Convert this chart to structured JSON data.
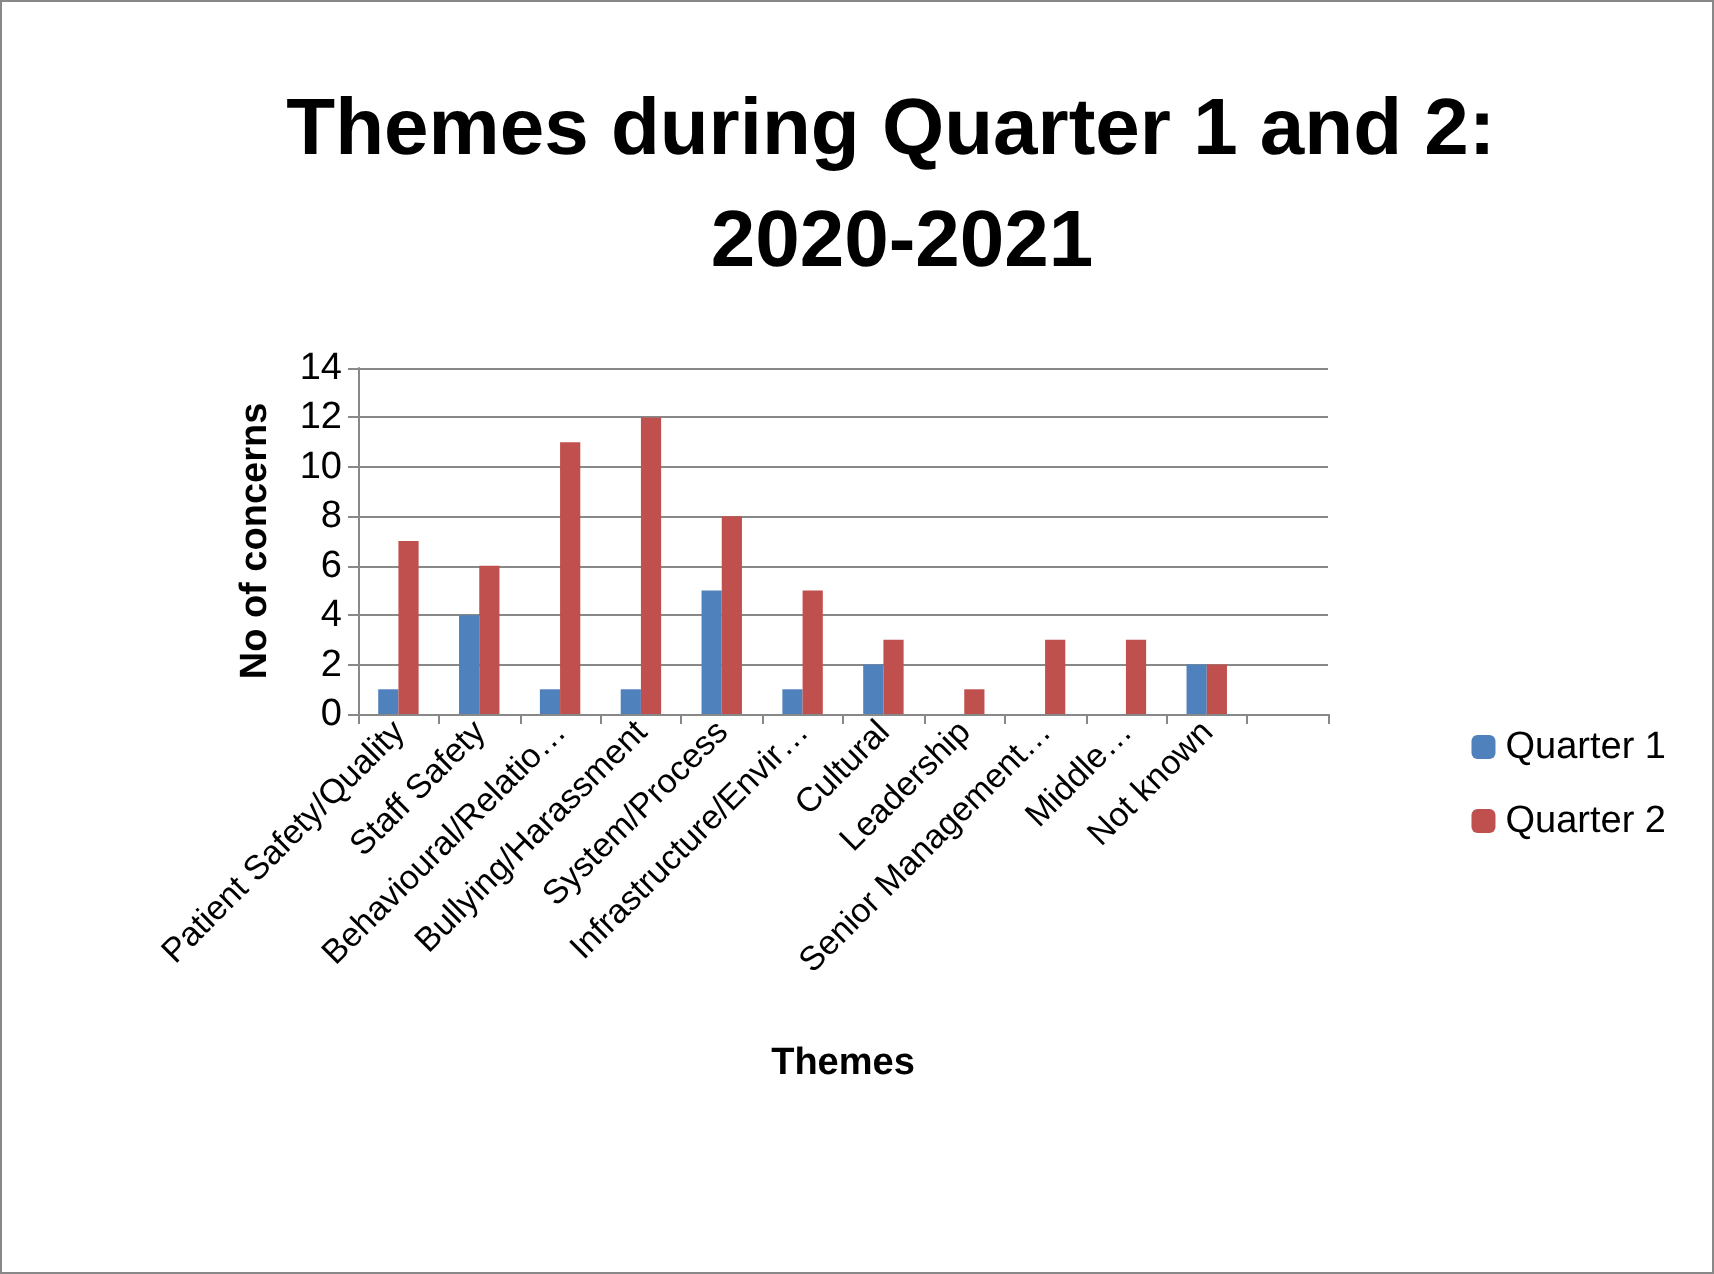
{
  "chart_data": {
    "type": "bar",
    "title": "Themes during Quarter 1 and 2: 2020-2021",
    "xlabel": "Themes",
    "ylabel": "No of concerns",
    "categories": [
      "Patient Safety/Quality",
      "Staff Safety",
      "Behavioural/Relatio…",
      "Bullying/Harassment",
      "System/Process",
      "Infrastructure/Envir…",
      "Cultural",
      "Leadership",
      "Senior Management…",
      "Middle…",
      "Not known",
      null
    ],
    "series": [
      {
        "name": "Quarter 1",
        "color": "#4f81bd",
        "values": [
          1,
          4,
          1,
          1,
          5,
          1,
          2,
          0,
          0,
          0,
          2,
          null
        ]
      },
      {
        "name": "Quarter 2",
        "color": "#c0504d",
        "values": [
          7,
          6,
          11,
          12,
          8,
          5,
          3,
          1,
          3,
          3,
          2,
          null
        ]
      }
    ],
    "ylim": [
      0,
      14
    ],
    "yticks": [
      0,
      2,
      4,
      6,
      8,
      10,
      12,
      14
    ],
    "grid": "y",
    "legend": "right"
  }
}
